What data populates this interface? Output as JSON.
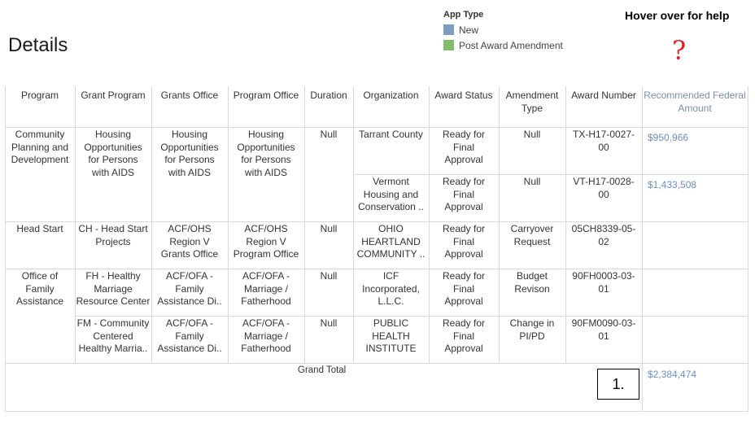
{
  "page_title": "Details",
  "legend": {
    "title": "App Type",
    "items": [
      {
        "label": "New",
        "color": "#7b9dc4"
      },
      {
        "label": "Post Award Amendment",
        "color": "#84bc6c"
      }
    ]
  },
  "help": {
    "title": "Hover over for help",
    "icon": "?"
  },
  "table": {
    "headers": [
      "Program",
      "Grant Program",
      "Grants Office",
      "Program Office",
      "Duration",
      "Organization",
      "Award Status",
      "Amendment\nType",
      "Award Number",
      "Recommended Federal\nAmount"
    ],
    "groups": [
      {
        "program": "Community\nPlanning and\nDevelopment",
        "grant_program": "Housing\nOpportunities\nfor Persons\nwith AIDS",
        "grants_office": "Housing\nOpportunities\nfor Persons\nwith AIDS",
        "program_office": "Housing\nOpportunities\nfor Persons\nwith AIDS",
        "duration": "Null",
        "rows": [
          {
            "organization": "Tarrant County",
            "award_status": "Ready for\nFinal\nApproval",
            "amendment_type": "Null",
            "award_number": "TX-H17-0027-\n00",
            "amount": "$950,966"
          },
          {
            "organization": "Vermont\nHousing and\nConservation ..",
            "award_status": "Ready for\nFinal\nApproval",
            "amendment_type": "Null",
            "award_number": "VT-H17-0028-\n00",
            "amount": "$1,433,508"
          }
        ]
      },
      {
        "program": "Head Start",
        "rows": [
          {
            "grant_program": "CH - Head Start\nProjects",
            "grants_office": "ACF/OHS\nRegion V\nGrants Office",
            "program_office": "ACF/OHS\nRegion V\nProgram Office",
            "duration": "Null",
            "organization": "OHIO\nHEARTLAND\nCOMMUNITY ..",
            "award_status": "Ready for\nFinal\nApproval",
            "amendment_type": "Carryover\nRequest",
            "award_number": "05CH8339-05-\n02",
            "amount": ""
          }
        ]
      },
      {
        "program": "Office of\nFamily\nAssistance",
        "rows": [
          {
            "grant_program": "FH - Healthy\nMarriage\nResource Center",
            "grants_office": "ACF/OFA -\nFamily\nAssistance Di..",
            "program_office": "ACF/OFA -\nMarriage /\nFatherhood",
            "duration": "Null",
            "organization": "ICF\nIncorporated,\nL.L.C.",
            "award_status": "Ready for\nFinal\nApproval",
            "amendment_type": "Budget\nRevison",
            "award_number": "90FH0003-03-\n01",
            "amount": ""
          },
          {
            "grant_program": "FM - Community\nCentered\nHealthy Marria..",
            "grants_office": "ACF/OFA -\nFamily\nAssistance Di..",
            "program_office": "ACF/OFA -\nMarriage /\nFatherhood",
            "duration": "Null",
            "organization": "PUBLIC HEALTH\nINSTITUTE",
            "award_status": "Ready for\nFinal\nApproval",
            "amendment_type": "Change in\nPI/PD",
            "award_number": "90FM0090-03-\n01",
            "amount": ""
          }
        ]
      }
    ],
    "grand_total_label": "Grand Total",
    "grand_total_amount": "$2,384,474"
  },
  "callout": "1."
}
